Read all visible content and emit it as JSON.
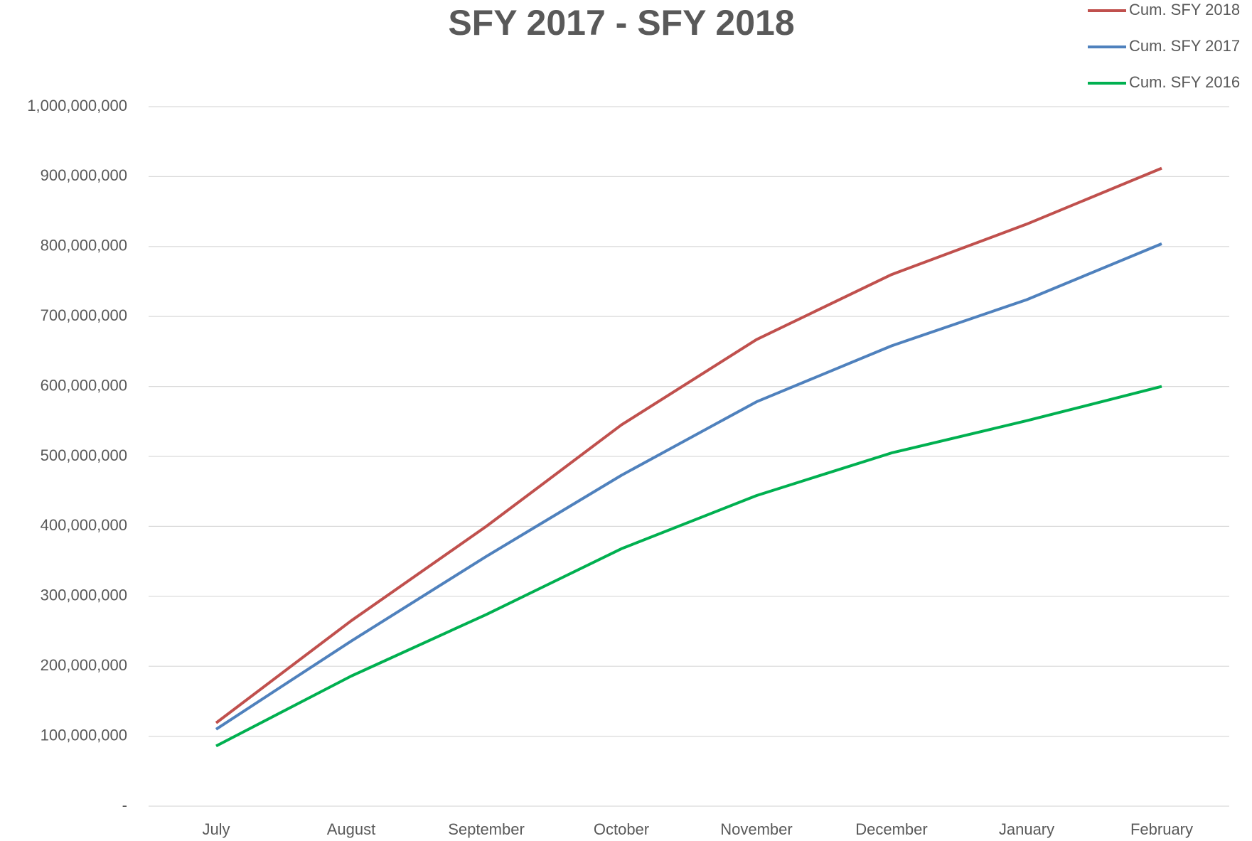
{
  "chart_data": {
    "type": "line",
    "title": "SFY 2017 - SFY 2018",
    "categories": [
      "July",
      "August",
      "September",
      "October",
      "November",
      "December",
      "January",
      "February"
    ],
    "series": [
      {
        "name": "Cum. SFY 2018",
        "color": "#c0504d",
        "values": [
          119000000,
          265000000,
          400000000,
          545000000,
          667000000,
          760000000,
          832000000,
          912000000
        ]
      },
      {
        "name": "Cum. SFY 2017",
        "color": "#4f81bd",
        "values": [
          110000000,
          236000000,
          357000000,
          473000000,
          578000000,
          658000000,
          724000000,
          804000000
        ]
      },
      {
        "name": "Cum. SFY 2016",
        "color": "#00b050",
        "values": [
          86000000,
          186000000,
          274000000,
          368000000,
          444000000,
          505000000,
          551000000,
          600000000
        ]
      }
    ],
    "ylim": [
      0,
      1000000000
    ],
    "yticks": [
      {
        "value": 0,
        "label": "-"
      },
      {
        "value": 100000000,
        "label": "100,000,000"
      },
      {
        "value": 200000000,
        "label": "200,000,000"
      },
      {
        "value": 300000000,
        "label": "300,000,000"
      },
      {
        "value": 400000000,
        "label": "400,000,000"
      },
      {
        "value": 500000000,
        "label": "500,000,000"
      },
      {
        "value": 600000000,
        "label": "600,000,000"
      },
      {
        "value": 700000000,
        "label": "700,000,000"
      },
      {
        "value": 800000000,
        "label": "800,000,000"
      },
      {
        "value": 900000000,
        "label": "900,000,000"
      },
      {
        "value": 1000000000,
        "label": "1,000,000,000"
      }
    ],
    "grid": true,
    "legend": "top-right"
  }
}
